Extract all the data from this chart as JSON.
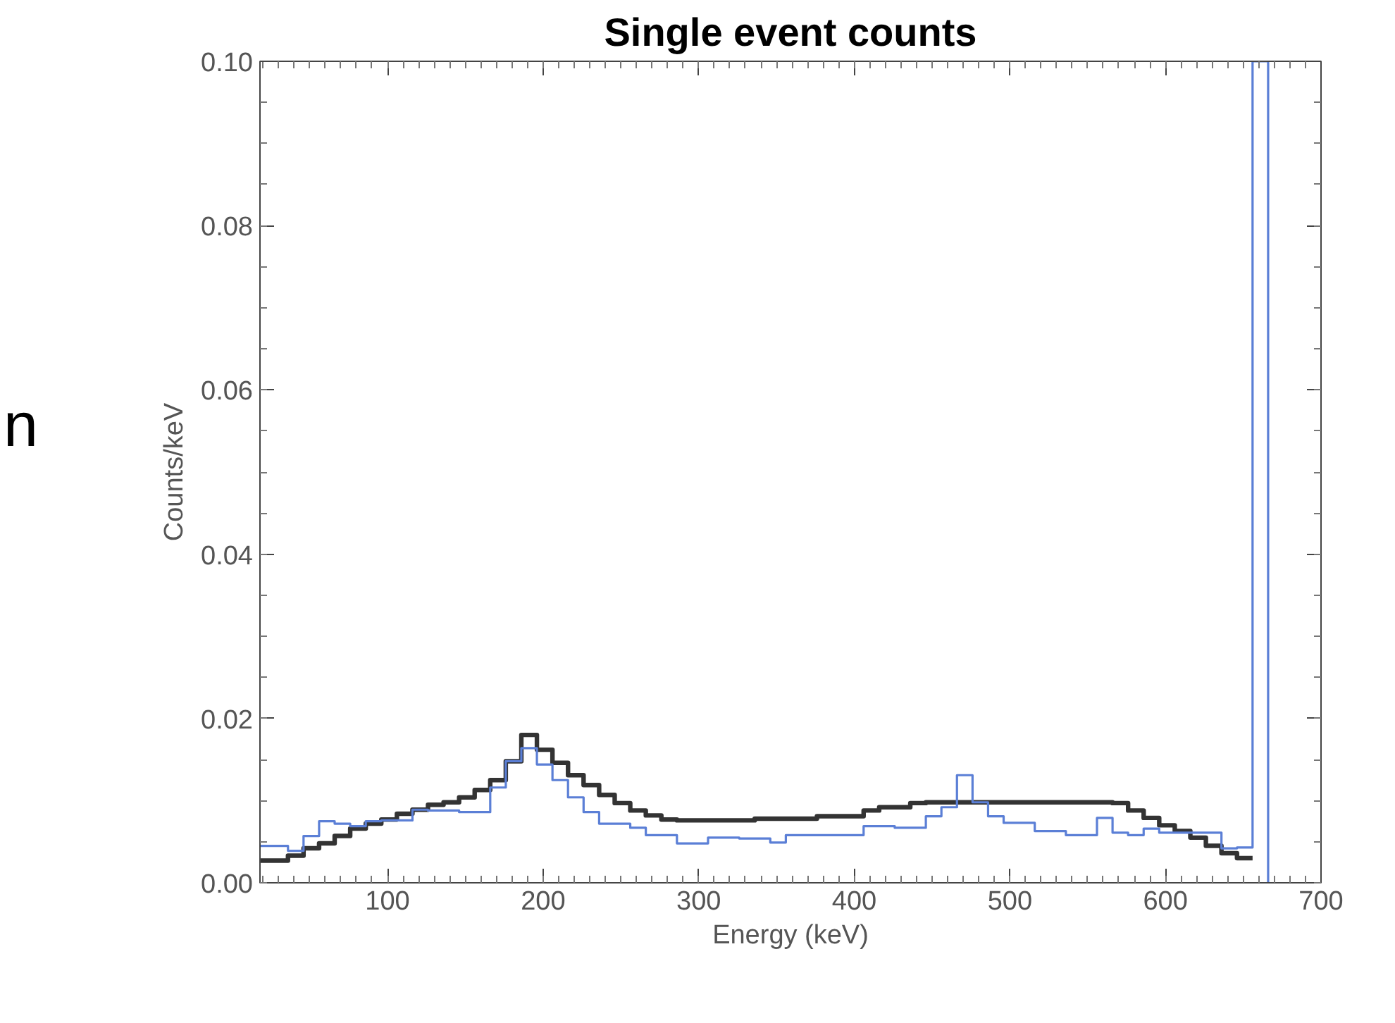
{
  "chart_data": {
    "type": "step",
    "title": "Single event counts",
    "xlabel": "Energy (keV)",
    "ylabel": "Counts/keV",
    "annotations": [
      "n"
    ],
    "xlim": [
      18,
      700
    ],
    "ylim": [
      0,
      0.1
    ],
    "xticks": [
      100,
      200,
      300,
      400,
      500,
      600,
      700
    ],
    "yticks": [
      {
        "value": 0,
        "label": "0.00"
      },
      {
        "value": 0.02,
        "label": "0.02"
      },
      {
        "value": 0.04,
        "label": "0.04"
      },
      {
        "value": 0.06,
        "label": "0.06"
      },
      {
        "value": 0.08,
        "label": "0.08"
      },
      {
        "value": 0.1,
        "label": "0.10"
      }
    ],
    "grid": false,
    "line_style": "solid",
    "series": [
      {
        "color": "#333333",
        "x": [
          18,
          36,
          46,
          56,
          66,
          76,
          86,
          96,
          106,
          116,
          126,
          136,
          146,
          156,
          166,
          176,
          186,
          196,
          206,
          216,
          226,
          236,
          246,
          256,
          266,
          276,
          286,
          336,
          376,
          406,
          416,
          436,
          446,
          566,
          576,
          586,
          596,
          606,
          616,
          626,
          636,
          646,
          656
        ],
        "values": [
          0.0027,
          0.0033,
          0.0042,
          0.0048,
          0.0057,
          0.0066,
          0.0072,
          0.0077,
          0.0084,
          0.0089,
          0.0095,
          0.0098,
          0.0104,
          0.0113,
          0.0125,
          0.0148,
          0.018,
          0.0162,
          0.0146,
          0.0131,
          0.0119,
          0.0107,
          0.0097,
          0.0088,
          0.0082,
          0.0077,
          0.0076,
          0.0078,
          0.0081,
          0.0088,
          0.0092,
          0.0097,
          0.0098,
          0.0097,
          0.0088,
          0.0079,
          0.007,
          0.0063,
          0.0055,
          0.0045,
          0.0036,
          0.003,
          0.003
        ]
      },
      {
        "color": "#5b7fd6",
        "x": [
          18,
          36,
          46,
          56,
          66,
          76,
          86,
          96,
          116,
          126,
          146,
          166,
          176,
          186,
          196,
          206,
          216,
          226,
          236,
          256,
          266,
          286,
          306,
          326,
          346,
          356,
          406,
          426,
          446,
          456,
          466,
          476,
          486,
          496,
          516,
          536,
          556,
          566,
          576,
          586,
          596,
          636,
          646,
          656,
          666
        ],
        "values": [
          0.0045,
          0.0039,
          0.0057,
          0.0075,
          0.0072,
          0.0069,
          0.0075,
          0.0076,
          0.0089,
          0.0088,
          0.0086,
          0.0116,
          0.0148,
          0.0164,
          0.0144,
          0.0125,
          0.0104,
          0.0086,
          0.0072,
          0.0067,
          0.0058,
          0.0048,
          0.0055,
          0.0054,
          0.0049,
          0.0058,
          0.0069,
          0.0067,
          0.0081,
          0.0092,
          0.0131,
          0.0098,
          0.0081,
          0.0073,
          0.0063,
          0.0058,
          0.0079,
          0.0061,
          0.0058,
          0.0066,
          0.0061,
          0.0042,
          0.0043,
          0.1,
          0
        ]
      }
    ]
  }
}
